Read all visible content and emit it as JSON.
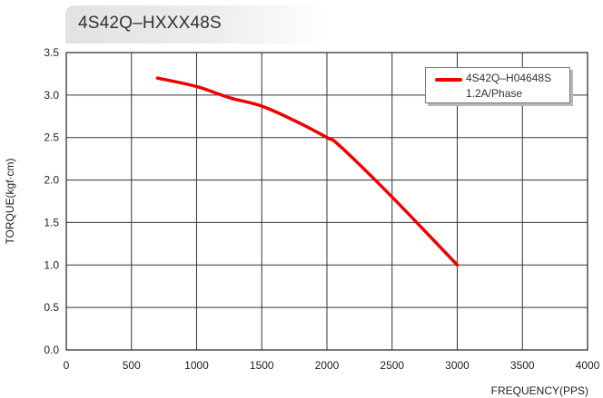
{
  "header": {
    "title": "4S42Q–HXXX48S"
  },
  "chart_data": {
    "type": "line",
    "xlabel": "FREQUENCY(PPS)",
    "ylabel": "TORQUE(kgf·cm)",
    "xlim": [
      0,
      4000
    ],
    "ylim": [
      0,
      3.5
    ],
    "x_ticks": [
      "0",
      "500",
      "1000",
      "1500",
      "2000",
      "2500",
      "3000",
      "3500",
      "4000"
    ],
    "y_ticks": [
      "0.0",
      "0.5",
      "1.0",
      "1.5",
      "2.0",
      "2.5",
      "3.0",
      "3.5"
    ],
    "grid": true,
    "legend_position": "top-right",
    "series": [
      {
        "name": "4S42Q–H04648S",
        "subtitle": "1.2A/Phase",
        "color": "#ee0000",
        "x": [
          700,
          1000,
          1250,
          1500,
          1750,
          2000,
          2100,
          2500,
          3000
        ],
        "y": [
          3.2,
          3.1,
          2.97,
          2.87,
          2.7,
          2.5,
          2.4,
          1.8,
          1.0
        ]
      }
    ]
  }
}
